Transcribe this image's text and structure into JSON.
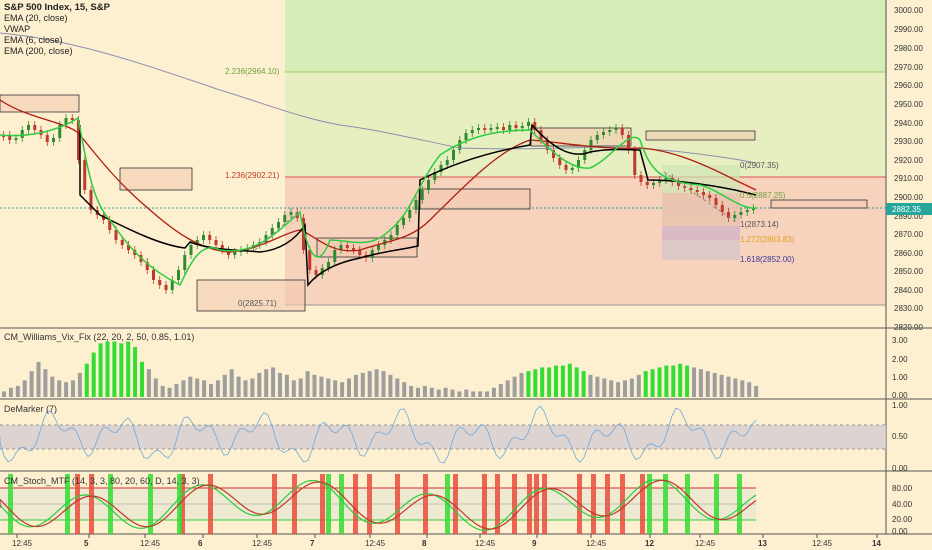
{
  "chart": {
    "symbol_title": "S&P 500 Index, 15, S&P",
    "legend": [
      "EMA (20, close)",
      "VWAP",
      "EMA (6, close)",
      "EMA (200, close)"
    ],
    "last_price": "2882.35",
    "price_ticks": [
      "3000.00",
      "2990.00",
      "2980.00",
      "2970.00",
      "2960.00",
      "2950.00",
      "2940.00",
      "2930.00",
      "2920.00",
      "2910.00",
      "2900.00",
      "2890.00",
      "2870.00",
      "2860.00",
      "2850.00",
      "2840.00",
      "2830.00",
      "2820.00"
    ],
    "fib_labels": {
      "f2236": "2.236(2964.10)",
      "f1236": "1.236(2902.21)",
      "f0_left": "0(2825.71)",
      "f0_right": "0(2907.35)",
      "f05_right": "0.5(2887.25)",
      "f1_right": "1(2873.14)",
      "f1272_right": "1.272(2863.83)",
      "f1618_right": "1.618(2852.00)"
    },
    "colors": {
      "bull": "#2e8b2e",
      "bear": "#c0392b",
      "ema20": "#b01e0e",
      "vwap": "#000000",
      "ema6": "#2ecc40",
      "ema200": "#8a8fb0"
    }
  },
  "williams": {
    "label": "CM_Williams_Vix_Fix (22, 20, 2, 50, 0.85, 1.01)",
    "ticks": [
      "3.00",
      "2.00",
      "1.00",
      "0.00"
    ]
  },
  "demarker": {
    "label": "DeMarker (7)",
    "ticks": [
      "1.00",
      "0.50",
      "0.00"
    ]
  },
  "stoch": {
    "label": "CM_Stoch_MTF (14, 3, 3, 80, 20, 60, D, 14, 3, 3)",
    "ticks": [
      "80.00",
      "40.00",
      "20.00",
      "0.00"
    ]
  },
  "time_axis": [
    "12:45",
    "5",
    "12:45",
    "6",
    "12:45",
    "7",
    "12:45",
    "8",
    "12:45",
    "9",
    "12:45",
    "12",
    "12:45",
    "13",
    "12:45",
    "14"
  ]
}
